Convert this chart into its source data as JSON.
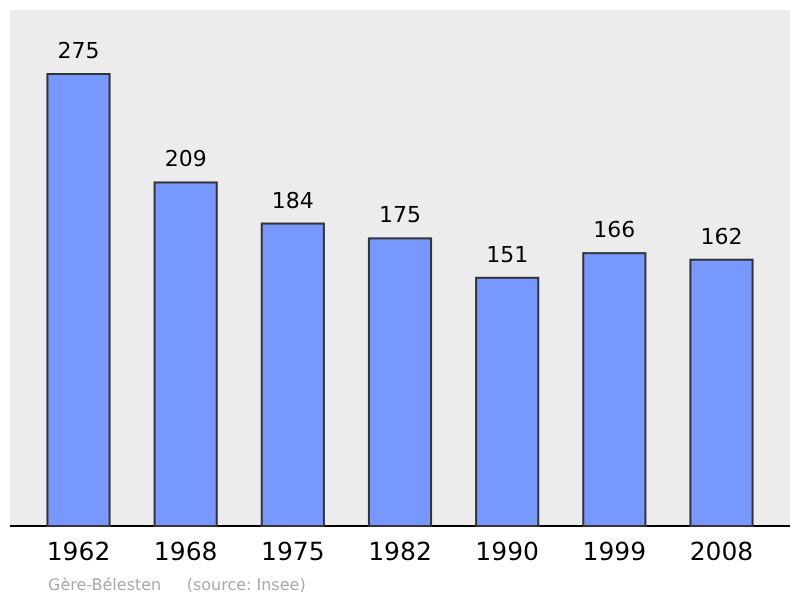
{
  "chart_data": {
    "type": "bar",
    "categories": [
      "1962",
      "1968",
      "1975",
      "1982",
      "1990",
      "1999",
      "2008"
    ],
    "values": [
      275,
      209,
      184,
      175,
      151,
      166,
      162
    ],
    "color": "#7799ff",
    "data_labels": true,
    "annotations": [
      "Gère-Bélesten     (source: Insee)"
    ]
  }
}
